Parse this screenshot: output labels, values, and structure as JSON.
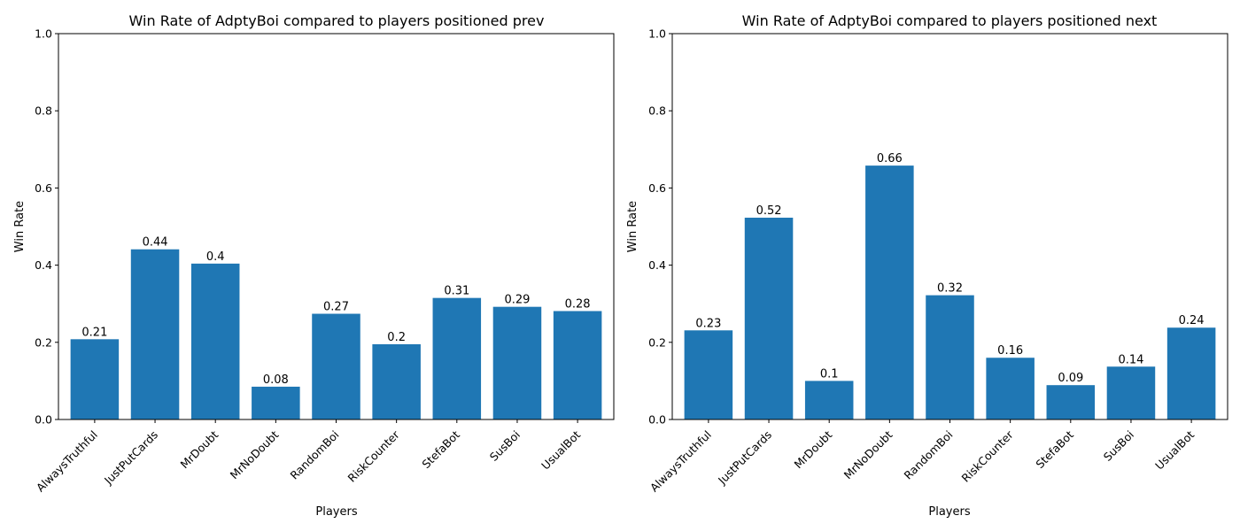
{
  "chart_data": [
    {
      "type": "bar",
      "title": "Win Rate of AdptyBoi compared to players positioned prev",
      "xlabel": "Players",
      "ylabel": "Win Rate",
      "ylim": [
        0,
        1
      ],
      "yticks": [
        "0.0",
        "0.2",
        "0.4",
        "0.6",
        "0.8",
        "1.0"
      ],
      "grid": false,
      "bar_color": "#1f77b4",
      "categories": [
        "AlwaysTruthful",
        "JustPutCards",
        "MrDoubt",
        "MrNoDoubt",
        "RandomBoi",
        "RiskCounter",
        "StefaBot",
        "SusBoi",
        "UsualBot"
      ],
      "values": [
        0.208,
        0.441,
        0.404,
        0.085,
        0.274,
        0.195,
        0.315,
        0.292,
        0.281
      ],
      "labels": [
        "0.21",
        "0.44",
        "0.4",
        "0.08",
        "0.27",
        "0.2",
        "0.31",
        "0.29",
        "0.28"
      ]
    },
    {
      "type": "bar",
      "title": "Win Rate of AdptyBoi compared to players positioned next",
      "xlabel": "Players",
      "ylabel": "Win Rate",
      "ylim": [
        0,
        1
      ],
      "yticks": [
        "0.0",
        "0.2",
        "0.4",
        "0.6",
        "0.8",
        "1.0"
      ],
      "grid": false,
      "bar_color": "#1f77b4",
      "categories": [
        "AlwaysTruthful",
        "JustPutCards",
        "MrDoubt",
        "MrNoDoubt",
        "RandomBoi",
        "RiskCounter",
        "StefaBot",
        "SusBoi",
        "UsualBot"
      ],
      "values": [
        0.231,
        0.523,
        0.1,
        0.658,
        0.322,
        0.16,
        0.089,
        0.137,
        0.238
      ],
      "labels": [
        "0.23",
        "0.52",
        "0.1",
        "0.66",
        "0.32",
        "0.16",
        "0.09",
        "0.14",
        "0.24"
      ]
    }
  ]
}
